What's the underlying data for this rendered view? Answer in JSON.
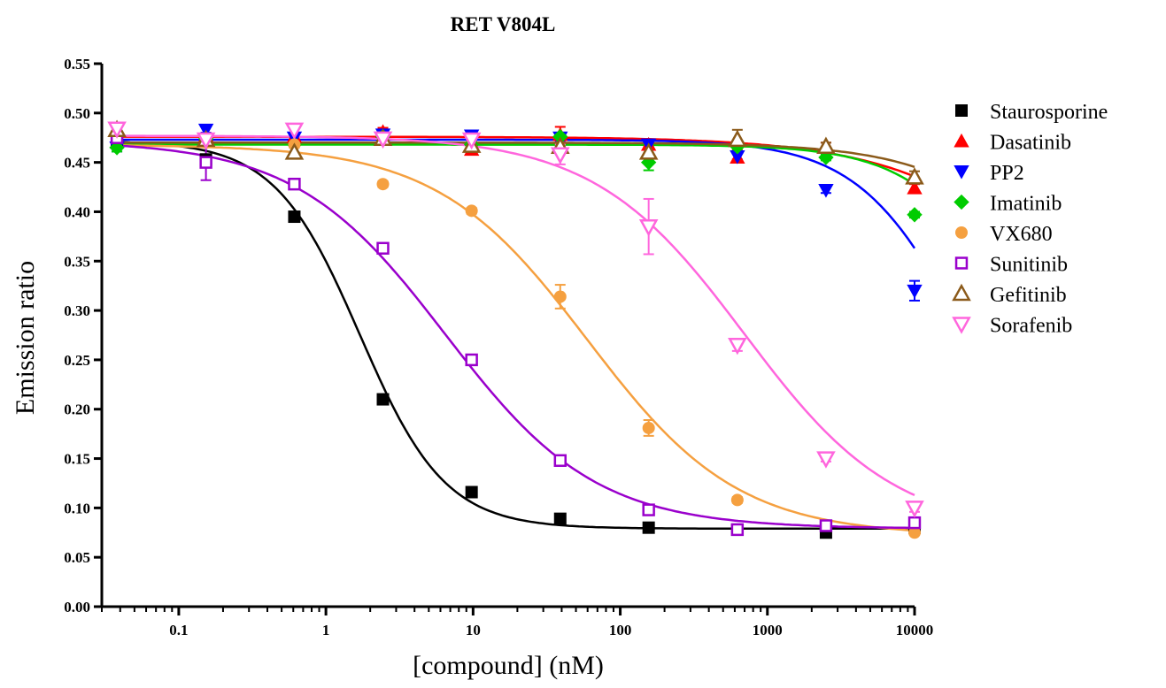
{
  "chart_data": {
    "type": "scatter",
    "title": "RET V804L",
    "xlabel": "[compound] (nM)",
    "ylabel": "Emission ratio",
    "x_scale": "log",
    "xlim": [
      0.03,
      10000
    ],
    "ylim": [
      0.0,
      0.55
    ],
    "x_ticks": [
      0.1,
      1,
      10,
      100,
      1000,
      10000
    ],
    "x_tick_labels": [
      "0.1",
      "1",
      "10",
      "100",
      "1000",
      "10000"
    ],
    "y_ticks": [
      0.0,
      0.05,
      0.1,
      0.15,
      0.2,
      0.25,
      0.3,
      0.35,
      0.4,
      0.45,
      0.5,
      0.55
    ],
    "y_tick_labels": [
      "0.00",
      "0.05",
      "0.10",
      "0.15",
      "0.20",
      "0.25",
      "0.30",
      "0.35",
      "0.40",
      "0.45",
      "0.50",
      "0.55"
    ],
    "grid": false,
    "legend_position": "right",
    "x": [
      0.038,
      0.153,
      0.61,
      2.44,
      9.77,
      39.1,
      156,
      625,
      2500,
      10000
    ],
    "series": [
      {
        "name": "Staurosporine",
        "marker": "square-filled",
        "color": "#000000",
        "values": [
          0.47,
          0.453,
          0.395,
          0.21,
          0.116,
          0.089,
          0.08,
          0.078,
          0.075,
          0.08
        ],
        "errors": [
          0.002,
          0.003,
          0.003,
          0.003,
          0.003,
          0.002,
          0.002,
          0.003,
          0.002,
          0.002
        ],
        "fit": {
          "top": 0.472,
          "bottom": 0.079,
          "ec50": 1.7,
          "hill": 1.5
        }
      },
      {
        "name": "Dasatinib",
        "marker": "triangle-up-filled",
        "color": "#ff0000",
        "values": [
          0.482,
          0.477,
          0.476,
          0.481,
          0.463,
          0.478,
          0.468,
          0.455,
          0.466,
          0.424
        ],
        "errors": [
          0.004,
          0.003,
          0.003,
          0.004,
          0.004,
          0.008,
          0.004,
          0.004,
          0.004,
          0.004
        ],
        "fit": {
          "top": 0.476,
          "bottom": 0.0,
          "ec50": 300000,
          "hill": 0.7
        }
      },
      {
        "name": "PP2",
        "marker": "triangle-down-filled",
        "color": "#0000ff",
        "values": [
          0.465,
          0.483,
          0.475,
          0.478,
          0.477,
          0.475,
          0.468,
          0.456,
          0.422,
          0.32
        ],
        "errors": [
          0.004,
          0.003,
          0.003,
          0.004,
          0.003,
          0.003,
          0.003,
          0.003,
          0.003,
          0.01
        ],
        "fit": {
          "top": 0.473,
          "bottom": 0.08,
          "ec50": 22000,
          "hill": 1.2
        }
      },
      {
        "name": "Imatinib",
        "marker": "diamond-filled",
        "color": "#00cc00",
        "values": [
          0.465,
          0.474,
          0.468,
          0.476,
          0.468,
          0.476,
          0.45,
          0.466,
          0.455,
          0.397
        ],
        "errors": [
          0.004,
          0.003,
          0.003,
          0.004,
          0.003,
          0.003,
          0.008,
          0.004,
          0.003,
          0.003
        ],
        "fit": {
          "top": 0.468,
          "bottom": 0.08,
          "ec50": 60000,
          "hill": 1.2
        }
      },
      {
        "name": "VX680",
        "marker": "circle-filled",
        "color": "#f5a040",
        "values": [
          0.475,
          0.47,
          0.468,
          0.428,
          0.401,
          0.314,
          0.181,
          0.108,
          0.082,
          0.075
        ],
        "errors": [
          0.003,
          0.003,
          0.003,
          0.003,
          0.003,
          0.012,
          0.008,
          0.003,
          0.003,
          0.002
        ],
        "fit": {
          "top": 0.468,
          "bottom": 0.072,
          "ec50": 60,
          "hill": 0.85
        }
      },
      {
        "name": "Sunitinib",
        "marker": "square-open",
        "color": "#9a00cc",
        "values": [
          0.475,
          0.45,
          0.428,
          0.363,
          0.25,
          0.148,
          0.098,
          0.078,
          0.082,
          0.085
        ],
        "errors": [
          0.004,
          0.018,
          0.003,
          0.003,
          0.003,
          0.003,
          0.003,
          0.004,
          0.003,
          0.003
        ],
        "fit": {
          "top": 0.472,
          "bottom": 0.079,
          "ec50": 6.5,
          "hill": 0.85
        }
      },
      {
        "name": "Gefitinib",
        "marker": "triangle-up-open",
        "color": "#8b5a1a",
        "values": [
          0.483,
          0.473,
          0.46,
          0.474,
          0.467,
          0.466,
          0.46,
          0.473,
          0.466,
          0.435
        ],
        "errors": [
          0.004,
          0.004,
          0.006,
          0.004,
          0.004,
          0.004,
          0.006,
          0.01,
          0.004,
          0.006
        ],
        "fit": {
          "top": 0.47,
          "bottom": 0.0,
          "ec50": 250000,
          "hill": 0.9
        }
      },
      {
        "name": "Sorafenib",
        "marker": "triangle-down-open",
        "color": "#ff66dd",
        "values": [
          0.484,
          0.473,
          0.483,
          0.474,
          0.473,
          0.458,
          0.385,
          0.265,
          0.15,
          0.1
        ],
        "errors": [
          0.006,
          0.004,
          0.006,
          0.004,
          0.004,
          0.01,
          0.028,
          0.006,
          0.003,
          0.004
        ],
        "fit": {
          "top": 0.477,
          "bottom": 0.075,
          "ec50": 700,
          "hill": 0.85
        }
      }
    ]
  }
}
